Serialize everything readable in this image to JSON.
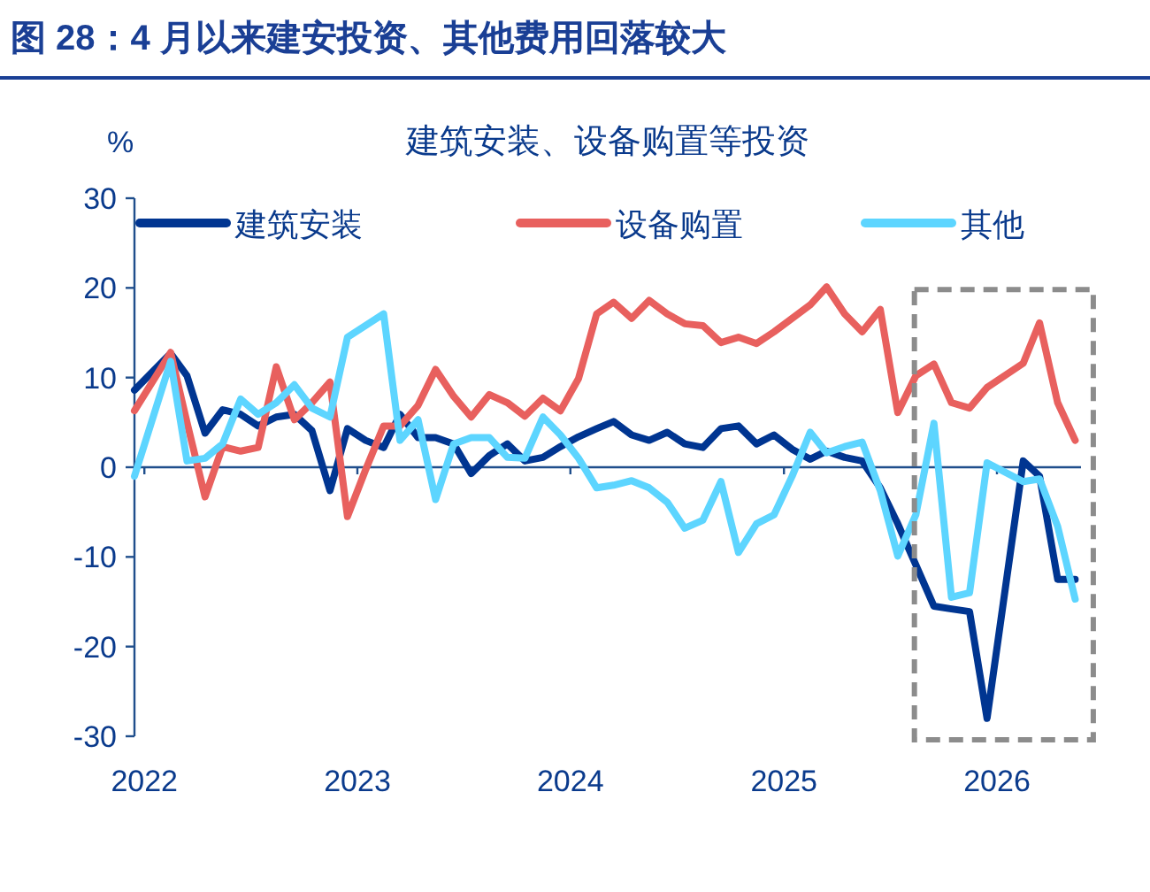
{
  "chart_data": {
    "type": "line",
    "title": "图 28：4 月以来建安投资、其他费用回落较大",
    "subtitle": "建筑安装、设备购置等投资",
    "ylabel": "%",
    "x": [
      "2021-12-15",
      "2022-02-15",
      "2022-03-15",
      "2022-04-15",
      "2022-05-15",
      "2022-06-15",
      "2022-07-15",
      "2022-08-15",
      "2022-09-15",
      "2022-10-15",
      "2022-11-15",
      "2022-12-15",
      "2023-01-15",
      "2023-02-15",
      "2023-03-15",
      "2023-04-15",
      "2023-05-15",
      "2023-06-15",
      "2023-07-15",
      "2023-08-15",
      "2023-09-15",
      "2023-10-15",
      "2023-11-15",
      "2023-12-15",
      "2024-01-15",
      "2024-02-15",
      "2024-03-15",
      "2024-04-15",
      "2024-05-15",
      "2024-06-15",
      "2024-07-15",
      "2024-08-15",
      "2024-09-15",
      "2024-10-15",
      "2024-11-15",
      "2024-12-15",
      "2025-01-15",
      "2025-02-15",
      "2025-03-15",
      "2025-04-15",
      "2025-05-15",
      "2025-06-15",
      "2025-07-15",
      "2025-08-15",
      "2025-09-15",
      "2025-10-15",
      "2025-11-15",
      "2025-12-15",
      "2026-02-15",
      "2026-03-15",
      "2026-04-15",
      "2026-05-15"
    ],
    "series": [
      {
        "name": "建筑安装",
        "color": "#003591",
        "values": [
          8.6,
          12.7,
          10.2,
          3.8,
          6.4,
          5.9,
          4.6,
          5.6,
          5.9,
          4.1,
          -2.6,
          4.3,
          3.0,
          2.2,
          5.9,
          3.3,
          3.3,
          2.6,
          -0.7,
          1.3,
          2.6,
          0.7,
          1.1,
          2.3,
          3.4,
          4.3,
          5.1,
          3.6,
          3.0,
          3.9,
          2.6,
          2.2,
          4.3,
          4.6,
          2.6,
          3.6,
          2.0,
          0.9,
          1.8,
          1.1,
          0.7,
          -2.3,
          -6.3,
          -10.9,
          -15.5,
          -15.8,
          -16.1,
          -28.0,
          0.7,
          -1.0,
          -12.5,
          -12.5
        ]
      },
      {
        "name": "设备购置",
        "color": "#e8605e",
        "values": [
          6.3,
          12.8,
          5,
          -3.3,
          2.3,
          1.8,
          2.2,
          11.2,
          5.3,
          7.2,
          9.5,
          -5.5,
          -0.3,
          4.6,
          4.6,
          6.9,
          10.9,
          7.9,
          5.6,
          8.1,
          7.2,
          5.7,
          7.7,
          6.3,
          9.9,
          17.1,
          18.4,
          16.6,
          18.6,
          17.1,
          16.0,
          15.8,
          13.9,
          14.5,
          13.8,
          15.1,
          16.6,
          18.1,
          20.1,
          17.1,
          15.1,
          17.6,
          6.1,
          10.2,
          11.5,
          7.2,
          6.6,
          8.9,
          11.6,
          16.1,
          7.2,
          3.0
        ]
      },
      {
        "name": "其他",
        "color": "#5dd5ff",
        "values": [
          -1.0,
          11.8,
          0.7,
          1.0,
          2.6,
          7.6,
          5.9,
          7.2,
          9.2,
          6.6,
          5.6,
          14.5,
          15.8,
          17.1,
          3.0,
          5.3,
          -3.6,
          2.6,
          3.3,
          3.3,
          1.1,
          1.0,
          5.6,
          3.6,
          1.0,
          -2.3,
          -2.0,
          -1.5,
          -2.3,
          -3.9,
          -6.8,
          -5.9,
          -1.6,
          -9.5,
          -6.3,
          -5.3,
          -1.0,
          3.9,
          1.6,
          2.3,
          2.8,
          -2.6,
          -9.9,
          -5.3,
          4.9,
          -14.5,
          -14.0,
          0.5,
          -1.6,
          -1.3,
          -6.6,
          -14.7
        ]
      }
    ],
    "xlim": [
      "2021-12-15",
      "2026-05-25"
    ],
    "xticks": [
      {
        "value": "2022-01-01",
        "label": "2022"
      },
      {
        "value": "2023-01-01",
        "label": "2023"
      },
      {
        "value": "2024-01-01",
        "label": "2024"
      },
      {
        "value": "2025-01-01",
        "label": "2025"
      },
      {
        "value": "2026-01-01",
        "label": "2026"
      }
    ],
    "ylim": [
      -30,
      30
    ],
    "yticks": [
      -30,
      -20,
      -10,
      0,
      10,
      20,
      30
    ],
    "ref_lines": [
      {
        "axis": "y",
        "value": 0,
        "color": "#1f4e8c"
      }
    ],
    "legend": "top"
  }
}
